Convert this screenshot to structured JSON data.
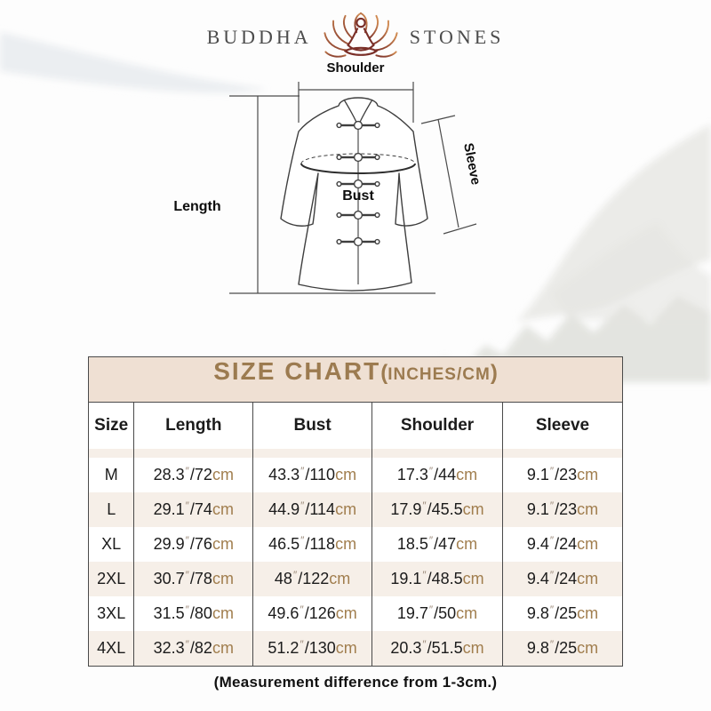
{
  "colors": {
    "title_bg": "#efe0d3",
    "title_text": "#9c7b50",
    "stripe": "#f6efe8",
    "cm_text": "#a17e4e",
    "inch_mark": "#9a8878",
    "table_border": "#4a4a4a",
    "text_dark": "#1b1b1b",
    "logo_text": "#4c4c4c",
    "diagram_line": "#424242",
    "lotus_dark": "#7a2f28",
    "lotus_light": "#d08a52"
  },
  "logo": {
    "left": "BUDDHA",
    "right": "STONES"
  },
  "diagram": {
    "labels": {
      "shoulder": "Shoulder",
      "sleeve": "Sleeve",
      "length": "Length",
      "bust": "Bust"
    }
  },
  "size_chart": {
    "title_main": "SIZE CHART",
    "title_paren_open": "(",
    "title_sub": "INCHES/CM",
    "title_paren_close": ")",
    "columns": [
      "Size",
      "Length",
      "Bust",
      "Shoulder",
      "Sleeve"
    ],
    "unit_inch_mark": "″",
    "unit_cm": "cm",
    "rows": [
      {
        "size": "M",
        "measurements": [
          {
            "in": "28.3",
            "cm": "72"
          },
          {
            "in": "43.3",
            "cm": "110"
          },
          {
            "in": "17.3",
            "cm": "44"
          },
          {
            "in": "9.1",
            "cm": "23"
          }
        ]
      },
      {
        "size": "L",
        "measurements": [
          {
            "in": "29.1",
            "cm": "74"
          },
          {
            "in": "44.9",
            "cm": "114"
          },
          {
            "in": "17.9",
            "cm": "45.5"
          },
          {
            "in": "9.1",
            "cm": "23"
          }
        ]
      },
      {
        "size": "XL",
        "measurements": [
          {
            "in": "29.9",
            "cm": "76"
          },
          {
            "in": "46.5",
            "cm": "118"
          },
          {
            "in": "18.5",
            "cm": "47"
          },
          {
            "in": "9.4",
            "cm": "24"
          }
        ]
      },
      {
        "size": "2XL",
        "measurements": [
          {
            "in": "30.7",
            "cm": "78"
          },
          {
            "in": "48",
            "cm": "122"
          },
          {
            "in": "19.1",
            "cm": "48.5"
          },
          {
            "in": "9.4",
            "cm": "24"
          }
        ]
      },
      {
        "size": "3XL",
        "measurements": [
          {
            "in": "31.5",
            "cm": "80"
          },
          {
            "in": "49.6",
            "cm": "126"
          },
          {
            "in": "19.7",
            "cm": "50"
          },
          {
            "in": "9.8",
            "cm": "25"
          }
        ]
      },
      {
        "size": "4XL",
        "measurements": [
          {
            "in": "32.3",
            "cm": "82"
          },
          {
            "in": "51.2",
            "cm": "130"
          },
          {
            "in": "20.3",
            "cm": "51.5"
          },
          {
            "in": "9.8",
            "cm": "25"
          }
        ]
      }
    ]
  },
  "note": "(Measurement difference from 1-3cm.)",
  "chart_data": {
    "type": "table",
    "title": "SIZE CHART(INCHES/CM)",
    "columns": [
      "Size",
      "Length",
      "Bust",
      "Shoulder",
      "Sleeve"
    ],
    "rows": [
      [
        "M",
        "28.3\"/72cm",
        "43.3\"/110cm",
        "17.3\"/44cm",
        "9.1\"/23cm"
      ],
      [
        "L",
        "29.1\"/74cm",
        "44.9\"/114cm",
        "17.9\"/45.5cm",
        "9.1\"/23cm"
      ],
      [
        "XL",
        "29.9\"/76cm",
        "46.5\"/118cm",
        "18.5\"/47cm",
        "9.4\"/24cm"
      ],
      [
        "2XL",
        "30.7\"/78cm",
        "48\"/122cm",
        "19.1\"/48.5cm",
        "9.4\"/24cm"
      ],
      [
        "3XL",
        "31.5\"/80cm",
        "49.6\"/126cm",
        "19.7\"/50cm",
        "9.8\"/25cm"
      ],
      [
        "4XL",
        "32.3\"/82cm",
        "51.2\"/130cm",
        "20.3\"/51.5cm",
        "9.8\"/25cm"
      ]
    ]
  }
}
